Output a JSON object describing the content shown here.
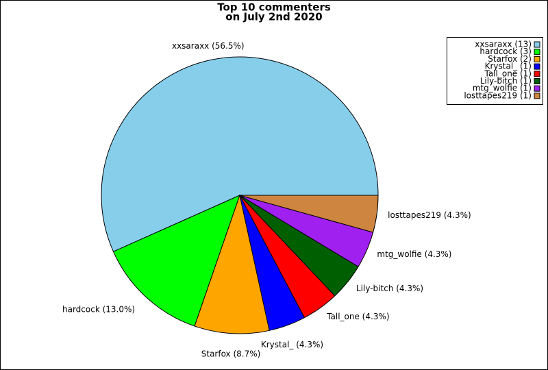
{
  "chart_data": {
    "type": "pie",
    "title": "Top 10 commenters",
    "subtitle": "on July 2nd 2020",
    "categories": [
      "xxsaraxx",
      "hardcock",
      "Starfox",
      "Krystal_",
      "Tall_one",
      "Lily-bitch",
      "mtg_wolfie",
      "losttapes219"
    ],
    "values": [
      56.5,
      13.0,
      8.7,
      4.3,
      4.3,
      4.3,
      4.3,
      4.3
    ],
    "value_labels": [
      "xxsaraxx (56.5%)",
      "hardcock (13.0%)",
      "Starfox (8.7%)",
      "Krystal_ (4.3%)",
      "Tall_one (4.3%)",
      "Lily-bitch (4.3%)",
      "mtg_wolfie (4.3%)",
      "losttapes219 (4.3%)"
    ],
    "legend_labels": [
      "xxsaraxx (13)",
      "hardcock (3)",
      "Starfox (2)",
      "Krystal_ (1)",
      "Tall_one (1)",
      "Lily-bitch (1)",
      "mtg_wolfie (1)",
      "losttapes219 (1)"
    ],
    "colors": [
      "#87ceeb",
      "#00ff00",
      "#ffa500",
      "#0000ff",
      "#ff0000",
      "#005f00",
      "#a020f0",
      "#cd853f"
    ],
    "legend_position": "upper right"
  }
}
